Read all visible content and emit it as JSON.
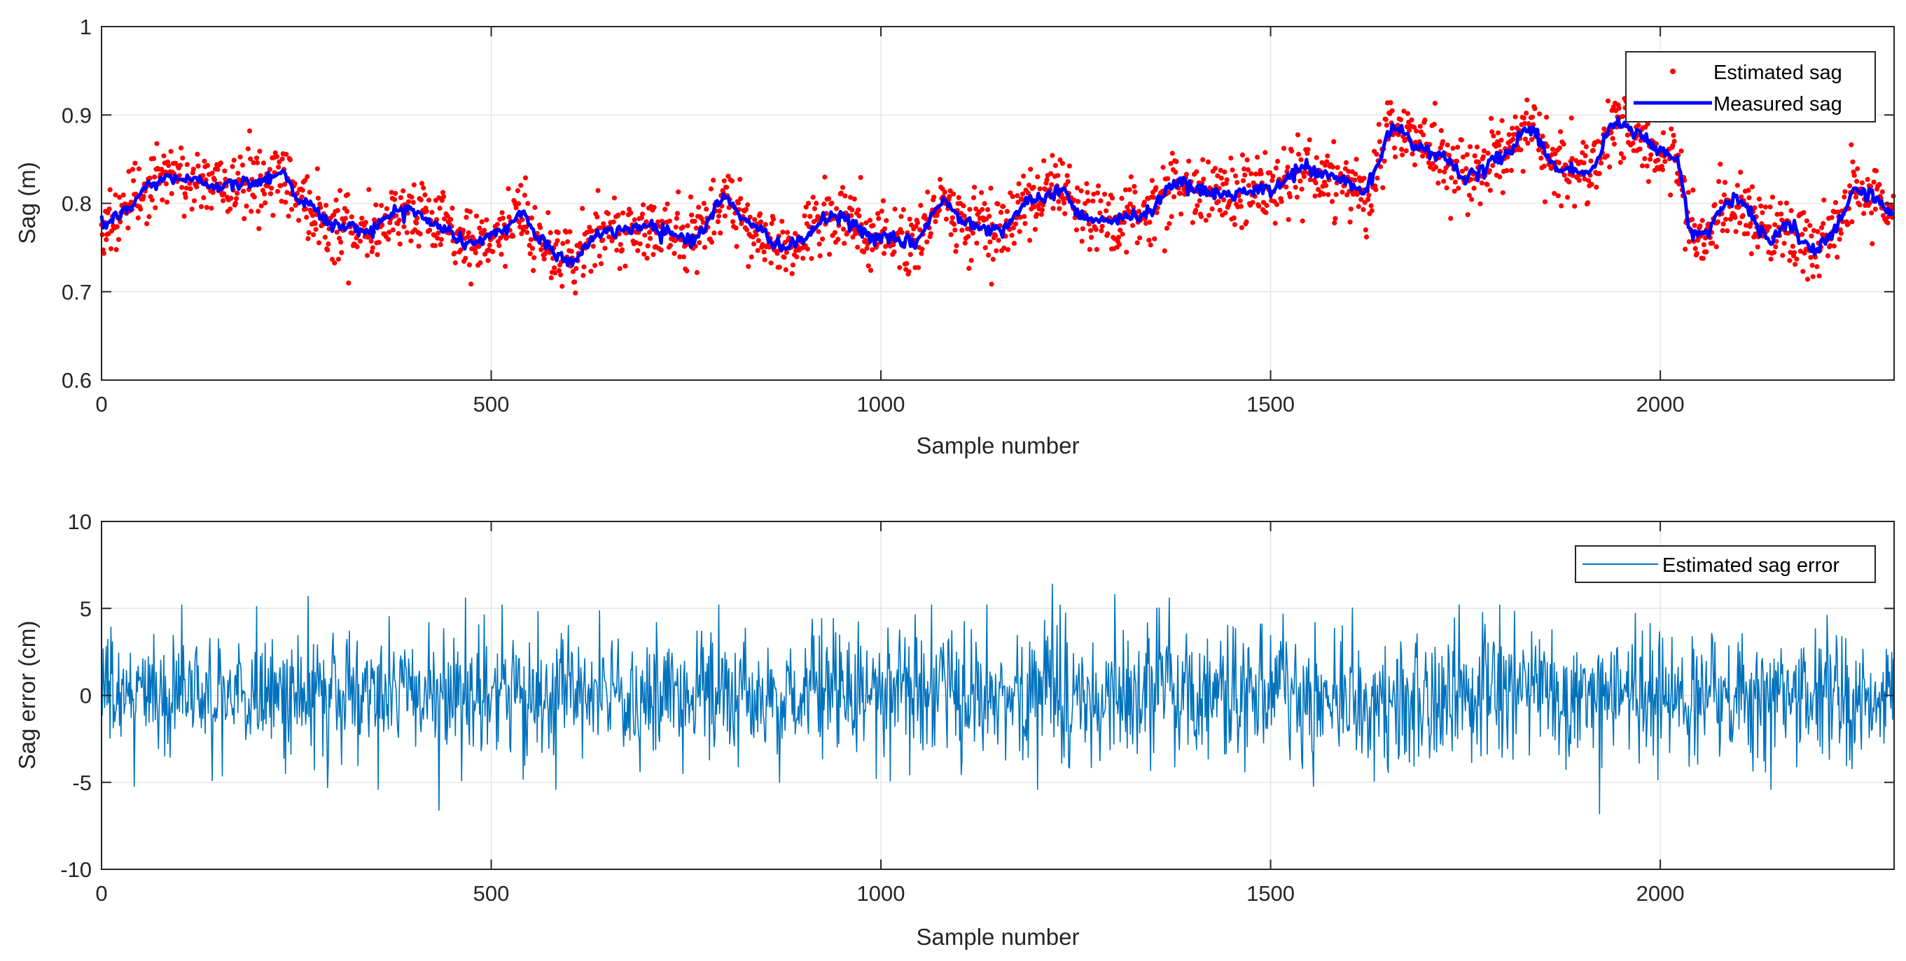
{
  "colors": {
    "estimated_dots": "#ff0000",
    "measured_line": "#0000ff",
    "error_line": "#0072bd",
    "grid": "#e6e6e6",
    "axes": "#262626"
  },
  "chart_data": [
    {
      "type": "scatter+line",
      "title": "",
      "xlabel": "Sample number",
      "ylabel": "Sag (m)",
      "xlim": [
        0,
        2300
      ],
      "ylim": [
        0.6,
        1.0
      ],
      "xticks": [
        0,
        500,
        1000,
        1500,
        2000
      ],
      "yticks": [
        0.6,
        0.7,
        0.8,
        0.9,
        1.0
      ],
      "ytick_labels": [
        "0.6",
        "0.7",
        "0.8",
        "0.9",
        "1"
      ],
      "grid": true,
      "legend_position": "top-right",
      "series": [
        {
          "name": "Estimated sag",
          "style": "red dots",
          "generated": "measured sag plus noise (sd ≈ 0.02 m), 2300 samples"
        },
        {
          "name": "Measured sag",
          "style": "blue line",
          "x": [
            0,
            30,
            60,
            90,
            120,
            160,
            200,
            230,
            260,
            300,
            340,
            390,
            430,
            470,
            510,
            540,
            560,
            600,
            640,
            700,
            760,
            800,
            840,
            880,
            940,
            1000,
            1040,
            1080,
            1110,
            1150,
            1190,
            1230,
            1260,
            1300,
            1340,
            1380,
            1400,
            1440,
            1500,
            1540,
            1580,
            1620,
            1660,
            1700,
            1760,
            1800,
            1830,
            1870,
            1910,
            1940,
            1970,
            2000,
            2020,
            2040,
            2060,
            2080,
            2100,
            2140,
            2160,
            2200,
            2220,
            2250,
            2270,
            2300
          ],
          "values": [
            0.775,
            0.79,
            0.82,
            0.83,
            0.825,
            0.82,
            0.825,
            0.835,
            0.8,
            0.775,
            0.77,
            0.795,
            0.775,
            0.755,
            0.765,
            0.79,
            0.76,
            0.735,
            0.765,
            0.775,
            0.76,
            0.805,
            0.77,
            0.75,
            0.785,
            0.76,
            0.755,
            0.8,
            0.78,
            0.77,
            0.8,
            0.815,
            0.785,
            0.78,
            0.79,
            0.825,
            0.815,
            0.81,
            0.815,
            0.84,
            0.83,
            0.815,
            0.885,
            0.86,
            0.83,
            0.855,
            0.885,
            0.84,
            0.835,
            0.89,
            0.88,
            0.86,
            0.85,
            0.77,
            0.765,
            0.8,
            0.805,
            0.76,
            0.775,
            0.745,
            0.765,
            0.815,
            0.81,
            0.785
          ]
        }
      ]
    },
    {
      "type": "line",
      "title": "",
      "xlabel": "Sample number",
      "ylabel": "Sag error (cm)",
      "xlim": [
        0,
        2300
      ],
      "ylim": [
        -10,
        10
      ],
      "xticks": [
        0,
        500,
        1000,
        1500,
        2000
      ],
      "yticks": [
        -10,
        -5,
        0,
        5,
        10
      ],
      "ytick_labels": [
        "-10",
        "-5",
        "0",
        "5",
        "10"
      ],
      "grid": true,
      "legend_position": "top-right",
      "series": [
        {
          "name": "Estimated sag error",
          "style": "thin line",
          "generated": "zero-mean noise (sd ≈ 1.9 cm), 2300 samples"
        }
      ],
      "annotated_extremes": [
        {
          "x": 265,
          "value": 5.7
        },
        {
          "x": 433,
          "value": -6.6
        },
        {
          "x": 467,
          "value": 5.6
        },
        {
          "x": 1220,
          "value": 6.4
        },
        {
          "x": 1300,
          "value": 5.8
        },
        {
          "x": 1370,
          "value": 5.6
        },
        {
          "x": 1922,
          "value": -6.8
        },
        {
          "x": 290,
          "value": -5.3
        },
        {
          "x": 870,
          "value": -5.0
        }
      ]
    }
  ]
}
